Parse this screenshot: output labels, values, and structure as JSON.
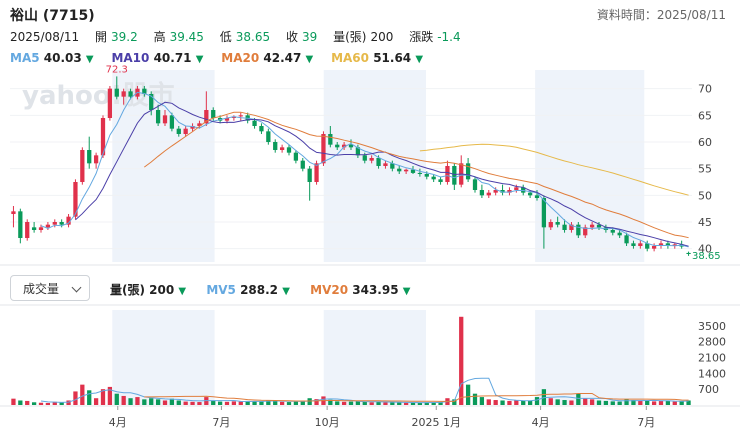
{
  "header": {
    "title": "裕山 (7715)",
    "source_label": "資料時間：2025/08/11",
    "date": "2025/08/11",
    "open_label": "開",
    "open": "39.2",
    "high_label": "高",
    "high": "39.45",
    "low_label": "低",
    "low": "38.65",
    "close_label": "收",
    "close": "39",
    "volume_label": "量(張)",
    "volume": "200",
    "change_label": "漲跌",
    "change": "-1.4"
  },
  "ma": {
    "ma5_label": "MA5",
    "ma5": "40.03",
    "ma10_label": "MA10",
    "ma10": "40.71",
    "ma20_label": "MA20",
    "ma20": "42.47",
    "ma60_label": "MA60",
    "ma60": "51.64",
    "down_arrow": "▼"
  },
  "watermark": "yahoo!股市",
  "volume_panel": {
    "selector_label": "成交量",
    "vol_label": "量(張)",
    "vol": "200",
    "mv5_label": "MV5",
    "mv5": "288.2",
    "mv20_label": "MV20",
    "mv20": "343.95",
    "down_arrow": "▼"
  },
  "colors": {
    "up": "#e0314b",
    "down": "#0a9a5a",
    "ma5": "#64a8e0",
    "ma10": "#4b3fa8",
    "ma20": "#e07d3c",
    "ma60": "#e6b94a",
    "band": "#eef3fa"
  },
  "chart_data": {
    "type": "candlestick",
    "price_yticks": [
      70,
      65,
      60,
      55,
      50,
      45,
      40
    ],
    "price_ylim": [
      37.5,
      73.5
    ],
    "volume_yticks": [
      3500,
      2800,
      2100,
      1400,
      700
    ],
    "volume_ylim": [
      0,
      4200
    ],
    "x_ticks": [
      "4月",
      "7月",
      "10月",
      "2025 1月",
      "4月",
      "7月"
    ],
    "annotation_high": "72.3",
    "annotation_last": "38.65",
    "candles": [
      [
        46.5,
        48.0,
        44.0,
        47.0,
        280
      ],
      [
        47.0,
        47.5,
        41.0,
        42.0,
        200
      ],
      [
        42.0,
        45.5,
        41.5,
        45.0,
        180
      ],
      [
        44.0,
        45.0,
        43.0,
        43.5,
        120
      ],
      [
        43.5,
        44.5,
        43.0,
        44.0,
        100
      ],
      [
        44.0,
        45.0,
        43.5,
        44.5,
        90
      ],
      [
        44.5,
        45.5,
        44.0,
        45.0,
        140
      ],
      [
        45.0,
        45.5,
        44.0,
        44.5,
        120
      ],
      [
        44.5,
        46.5,
        44.0,
        46.0,
        200
      ],
      [
        46.0,
        53.0,
        45.5,
        52.5,
        600
      ],
      [
        52.5,
        59.0,
        52.0,
        58.5,
        900
      ],
      [
        58.5,
        61.0,
        55.0,
        56.0,
        650
      ],
      [
        56.0,
        58.0,
        55.0,
        57.5,
        300
      ],
      [
        57.5,
        65.0,
        57.0,
        64.5,
        700
      ],
      [
        64.5,
        70.5,
        64.0,
        70.0,
        800
      ],
      [
        70.0,
        72.3,
        68.0,
        68.5,
        500
      ],
      [
        68.5,
        70.0,
        67.0,
        69.5,
        400
      ],
      [
        69.5,
        70.0,
        68.0,
        68.5,
        300
      ],
      [
        68.5,
        70.5,
        68.0,
        70.0,
        350
      ],
      [
        70.0,
        70.5,
        68.5,
        69.0,
        250
      ],
      [
        69.0,
        69.5,
        65.0,
        66.0,
        300
      ],
      [
        66.0,
        67.0,
        63.0,
        63.5,
        250
      ],
      [
        63.5,
        66.0,
        63.0,
        65.0,
        200
      ],
      [
        65.0,
        65.5,
        62.0,
        62.5,
        280
      ],
      [
        62.5,
        63.0,
        61.0,
        61.5,
        200
      ],
      [
        61.5,
        63.0,
        61.0,
        62.5,
        150
      ],
      [
        62.5,
        63.5,
        62.0,
        63.0,
        140
      ],
      [
        63.0,
        64.0,
        62.5,
        63.5,
        130
      ],
      [
        63.5,
        69.5,
        63.0,
        66.0,
        350
      ],
      [
        66.0,
        66.5,
        64.0,
        64.5,
        200
      ],
      [
        64.5,
        65.0,
        63.5,
        64.0,
        150
      ],
      [
        64.0,
        65.0,
        63.5,
        64.5,
        140
      ],
      [
        64.5,
        65.0,
        64.0,
        64.8,
        160
      ],
      [
        64.8,
        65.5,
        64.0,
        65.0,
        150
      ],
      [
        65.0,
        65.5,
        63.5,
        64.0,
        180
      ],
      [
        64.0,
        64.5,
        62.5,
        63.0,
        160
      ],
      [
        63.0,
        63.5,
        61.5,
        62.0,
        150
      ],
      [
        62.0,
        62.5,
        59.5,
        60.0,
        220
      ],
      [
        60.0,
        60.5,
        58.0,
        58.5,
        200
      ],
      [
        58.5,
        59.5,
        58.0,
        59.0,
        140
      ],
      [
        59.0,
        59.5,
        57.5,
        58.0,
        130
      ],
      [
        58.0,
        58.5,
        56.0,
        56.5,
        150
      ],
      [
        56.5,
        57.0,
        54.5,
        55.0,
        170
      ],
      [
        55.0,
        55.5,
        49.0,
        52.5,
        300
      ],
      [
        52.5,
        56.5,
        52.0,
        56.0,
        260
      ],
      [
        56.0,
        62.0,
        55.5,
        61.5,
        380
      ],
      [
        61.5,
        63.0,
        59.0,
        59.5,
        230
      ],
      [
        59.5,
        60.0,
        58.5,
        59.0,
        160
      ],
      [
        59.0,
        60.0,
        58.5,
        59.5,
        140
      ],
      [
        59.5,
        60.5,
        58.5,
        59.0,
        150
      ],
      [
        59.0,
        59.5,
        57.0,
        57.5,
        160
      ],
      [
        57.5,
        58.0,
        56.0,
        56.5,
        140
      ],
      [
        56.5,
        57.5,
        56.0,
        57.0,
        120
      ],
      [
        57.0,
        57.5,
        55.0,
        55.5,
        140
      ],
      [
        55.5,
        56.5,
        55.0,
        56.0,
        110
      ],
      [
        56.0,
        56.5,
        54.5,
        55.0,
        120
      ],
      [
        55.0,
        55.5,
        54.0,
        54.5,
        110
      ],
      [
        54.5,
        55.0,
        54.0,
        54.8,
        100
      ],
      [
        54.8,
        55.5,
        54.0,
        54.2,
        110
      ],
      [
        54.2,
        55.0,
        53.5,
        54.0,
        100
      ],
      [
        54.0,
        54.5,
        53.0,
        53.5,
        120
      ],
      [
        53.5,
        54.0,
        52.5,
        53.0,
        130
      ],
      [
        53.0,
        53.5,
        52.0,
        52.5,
        110
      ],
      [
        52.5,
        56.5,
        52.0,
        55.5,
        300
      ],
      [
        55.5,
        56.0,
        51.0,
        52.0,
        250
      ],
      [
        52.0,
        57.5,
        51.5,
        56.0,
        3900
      ],
      [
        56.0,
        57.0,
        52.5,
        53.0,
        900
      ],
      [
        53.0,
        53.5,
        50.5,
        51.0,
        500
      ],
      [
        51.0,
        52.0,
        49.5,
        50.0,
        350
      ],
      [
        50.0,
        51.0,
        49.5,
        50.5,
        250
      ],
      [
        50.5,
        51.5,
        50.0,
        51.0,
        220
      ],
      [
        51.0,
        52.0,
        50.0,
        50.5,
        200
      ],
      [
        50.5,
        51.5,
        50.0,
        51.0,
        180
      ],
      [
        51.0,
        52.0,
        50.5,
        51.5,
        200
      ],
      [
        51.5,
        52.0,
        50.0,
        50.5,
        180
      ],
      [
        50.5,
        51.0,
        49.5,
        50.0,
        200
      ],
      [
        50.0,
        51.0,
        49.0,
        49.5,
        350
      ],
      [
        49.5,
        50.0,
        40.0,
        44.0,
        700
      ],
      [
        44.0,
        45.5,
        43.5,
        45.0,
        300
      ],
      [
        45.0,
        46.0,
        44.0,
        44.5,
        250
      ],
      [
        44.5,
        45.5,
        43.0,
        43.5,
        220
      ],
      [
        43.5,
        45.0,
        43.0,
        44.5,
        200
      ],
      [
        44.5,
        45.0,
        42.0,
        42.5,
        500
      ],
      [
        42.5,
        44.5,
        42.0,
        44.0,
        300
      ],
      [
        44.0,
        45.0,
        43.5,
        44.5,
        250
      ],
      [
        44.5,
        45.0,
        43.5,
        44.0,
        200
      ],
      [
        44.0,
        44.5,
        43.0,
        43.5,
        180
      ],
      [
        43.5,
        44.0,
        42.5,
        43.0,
        160
      ],
      [
        43.0,
        43.5,
        42.0,
        42.5,
        150
      ],
      [
        42.5,
        43.0,
        40.5,
        41.0,
        250
      ],
      [
        41.0,
        41.5,
        40.0,
        40.5,
        220
      ],
      [
        40.5,
        41.5,
        40.0,
        41.0,
        200
      ],
      [
        41.0,
        41.5,
        39.5,
        40.0,
        180
      ],
      [
        40.0,
        41.0,
        39.5,
        40.5,
        160
      ],
      [
        40.5,
        41.5,
        40.0,
        41.0,
        200
      ],
      [
        41.0,
        41.5,
        40.0,
        40.5,
        180
      ],
      [
        40.5,
        41.0,
        40.0,
        40.8,
        150
      ],
      [
        40.8,
        41.5,
        40.0,
        40.4,
        160
      ],
      [
        39.2,
        39.45,
        38.65,
        39.0,
        200
      ]
    ]
  }
}
